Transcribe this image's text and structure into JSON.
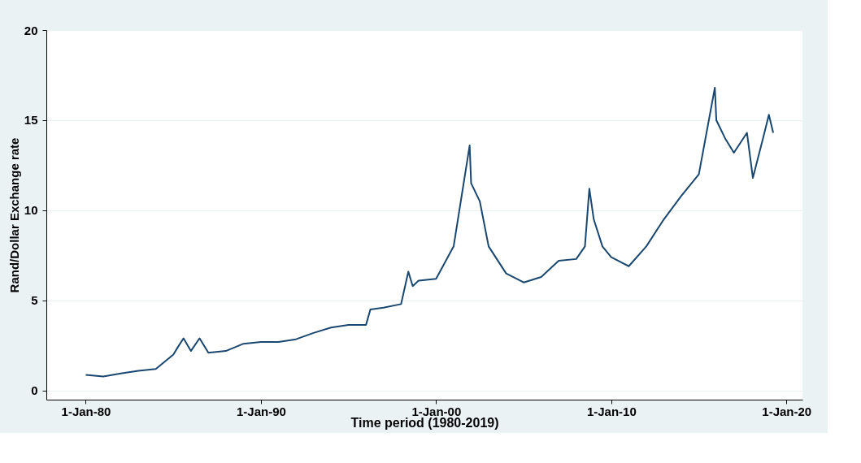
{
  "chart_data": {
    "type": "line",
    "xlabel": "Time period (1980-2019)",
    "ylabel": "Rand/Dollar Exchange rate",
    "x": [
      "1980-01-01",
      "1981-01-01",
      "1982-01-01",
      "1983-01-01",
      "1984-01-01",
      "1985-01-01",
      "1985-04-01",
      "1985-08-01",
      "1986-01-01",
      "1986-07-01",
      "1987-01-01",
      "1988-01-01",
      "1989-01-01",
      "1990-01-01",
      "1991-01-01",
      "1992-01-01",
      "1993-01-01",
      "1994-01-01",
      "1995-01-01",
      "1996-01-01",
      "1996-04-01",
      "1997-01-01",
      "1998-01-01",
      "1998-06-01",
      "1998-09-01",
      "1999-01-01",
      "2000-01-01",
      "2001-01-01",
      "2001-12-01",
      "2002-01-01",
      "2002-07-01",
      "2003-01-01",
      "2004-01-01",
      "2005-01-01",
      "2006-01-01",
      "2007-01-01",
      "2008-01-01",
      "2008-07-01",
      "2008-10-01",
      "2009-01-01",
      "2009-07-01",
      "2010-01-01",
      "2011-01-01",
      "2012-01-01",
      "2013-01-01",
      "2014-01-01",
      "2015-01-01",
      "2015-12-01",
      "2016-01-01",
      "2016-07-01",
      "2017-01-01",
      "2017-10-01",
      "2018-02-01",
      "2018-09-01",
      "2019-01-01",
      "2019-04-01"
    ],
    "values": [
      0.87,
      0.78,
      0.95,
      1.1,
      1.2,
      2.0,
      2.4,
      2.9,
      2.2,
      2.9,
      2.1,
      2.2,
      2.6,
      2.7,
      2.7,
      2.85,
      3.2,
      3.5,
      3.65,
      3.65,
      4.5,
      4.6,
      4.8,
      6.6,
      5.8,
      6.1,
      6.2,
      8.0,
      13.6,
      11.5,
      10.5,
      8.0,
      6.5,
      6.0,
      6.3,
      7.2,
      7.3,
      8.0,
      11.2,
      9.5,
      8.0,
      7.4,
      6.9,
      8.0,
      9.5,
      10.8,
      12.0,
      16.8,
      15.0,
      14.0,
      13.2,
      14.3,
      11.8,
      14.0,
      15.3,
      14.3
    ],
    "color": "#1a476f",
    "xlim": [
      "1977-10-01",
      "2020-12-01"
    ],
    "xticks": [
      {
        "value": "1980-01-01",
        "label": "1-Jan-80"
      },
      {
        "value": "1990-01-01",
        "label": "1-Jan-90"
      },
      {
        "value": "2000-01-01",
        "label": "1-Jan-00"
      },
      {
        "value": "2010-01-01",
        "label": "1-Jan-10"
      },
      {
        "value": "2020-01-01",
        "label": "1-Jan-20"
      }
    ],
    "ylim": [
      -0.5,
      20
    ],
    "yticks": [
      0,
      5,
      10,
      15,
      20
    ],
    "grid": "y",
    "marker": "none",
    "line_style": "solid"
  }
}
